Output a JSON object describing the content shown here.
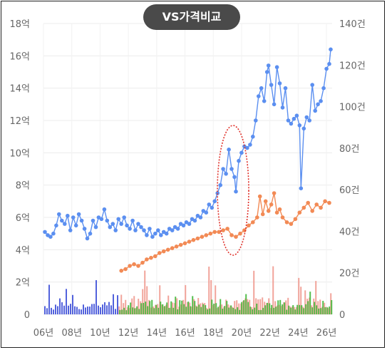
{
  "header": {
    "toggle_label": "VS가격비교"
  },
  "chart_data": {
    "type": "line",
    "x_tick_labels": [
      "06년",
      "08년",
      "10년",
      "12년",
      "14년",
      "16년",
      "18년",
      "20년",
      "22년",
      "24년",
      "26년"
    ],
    "x_range": [
      2006.0,
      2026.4
    ],
    "y_left": {
      "range": [
        0,
        18
      ],
      "tick_labels": [
        "0",
        "2억",
        "4억",
        "6억",
        "8억",
        "10억",
        "12억",
        "14억",
        "16억",
        "18억"
      ]
    },
    "y_right": {
      "range": [
        0,
        140
      ],
      "tick_labels": [
        "0",
        "20건",
        "40건",
        "60건",
        "80건",
        "100건",
        "120건",
        "140건"
      ]
    },
    "grid": true,
    "series": [
      {
        "color": "#5b8ff0",
        "axis": "left",
        "points": [
          [
            2006.1,
            5.1
          ],
          [
            2006.3,
            4.9
          ],
          [
            2006.5,
            4.8
          ],
          [
            2006.7,
            5.0
          ],
          [
            2006.9,
            5.5
          ],
          [
            2007.1,
            6.2
          ],
          [
            2007.3,
            5.8
          ],
          [
            2007.5,
            5.6
          ],
          [
            2007.7,
            6.1
          ],
          [
            2007.9,
            5.2
          ],
          [
            2008.1,
            6.0
          ],
          [
            2008.3,
            5.5
          ],
          [
            2008.5,
            6.2
          ],
          [
            2008.7,
            5.8
          ],
          [
            2008.9,
            5.3
          ],
          [
            2009.1,
            4.7
          ],
          [
            2009.3,
            5.0
          ],
          [
            2009.5,
            5.8
          ],
          [
            2009.7,
            5.4
          ],
          [
            2009.9,
            6.0
          ],
          [
            2010.1,
            5.9
          ],
          [
            2010.3,
            6.5
          ],
          [
            2010.5,
            5.8
          ],
          [
            2010.7,
            5.4
          ],
          [
            2010.9,
            5.6
          ],
          [
            2011.1,
            5.2
          ],
          [
            2011.3,
            5.9
          ],
          [
            2011.5,
            5.6
          ],
          [
            2011.7,
            6.0
          ],
          [
            2011.9,
            5.5
          ],
          [
            2012.1,
            5.3
          ],
          [
            2012.3,
            5.8
          ],
          [
            2012.5,
            5.2
          ],
          [
            2012.7,
            5.6
          ],
          [
            2012.9,
            5.4
          ],
          [
            2013.1,
            5.2
          ],
          [
            2013.3,
            4.9
          ],
          [
            2013.5,
            5.3
          ],
          [
            2013.7,
            4.8
          ],
          [
            2013.9,
            5.0
          ],
          [
            2014.1,
            5.2
          ],
          [
            2014.3,
            4.9
          ],
          [
            2014.5,
            5.1
          ],
          [
            2014.7,
            5.0
          ],
          [
            2014.9,
            5.3
          ],
          [
            2015.1,
            5.2
          ],
          [
            2015.3,
            5.4
          ],
          [
            2015.5,
            5.3
          ],
          [
            2015.7,
            5.6
          ],
          [
            2015.9,
            5.5
          ],
          [
            2016.1,
            5.7
          ],
          [
            2016.3,
            5.6
          ],
          [
            2016.5,
            5.9
          ],
          [
            2016.7,
            5.8
          ],
          [
            2016.9,
            6.1
          ],
          [
            2017.1,
            6.0
          ],
          [
            2017.3,
            6.4
          ],
          [
            2017.5,
            6.3
          ],
          [
            2017.7,
            6.8
          ],
          [
            2017.9,
            6.6
          ],
          [
            2018.1,
            7.0
          ],
          [
            2018.3,
            7.5
          ],
          [
            2018.5,
            8.0
          ],
          [
            2018.7,
            9.0
          ],
          [
            2018.9,
            8.7
          ],
          [
            2019.1,
            10.2
          ],
          [
            2019.3,
            9.0
          ],
          [
            2019.5,
            8.5
          ],
          [
            2019.6,
            7.6
          ],
          [
            2019.8,
            9.5
          ],
          [
            2020.0,
            10.0
          ],
          [
            2020.2,
            10.4
          ],
          [
            2020.4,
            10.3
          ],
          [
            2020.6,
            10.5
          ],
          [
            2020.8,
            11.0
          ],
          [
            2021.0,
            12.0
          ],
          [
            2021.2,
            13.5
          ],
          [
            2021.4,
            14.0
          ],
          [
            2021.6,
            13.2
          ],
          [
            2021.8,
            15.0
          ],
          [
            2021.9,
            15.4
          ],
          [
            2022.1,
            14.2
          ],
          [
            2022.3,
            13.0
          ],
          [
            2022.5,
            15.3
          ],
          [
            2022.7,
            14.3
          ],
          [
            2022.9,
            12.8
          ],
          [
            2023.1,
            14.0
          ],
          [
            2023.3,
            12.0
          ],
          [
            2023.5,
            11.8
          ],
          [
            2023.7,
            12.1
          ],
          [
            2023.9,
            12.3
          ],
          [
            2024.1,
            11.7
          ],
          [
            2024.2,
            7.8
          ],
          [
            2024.4,
            11.5
          ],
          [
            2024.6,
            12.2
          ],
          [
            2024.8,
            12.0
          ],
          [
            2025.0,
            14.2
          ],
          [
            2025.2,
            12.6
          ],
          [
            2025.4,
            13.0
          ],
          [
            2025.6,
            13.2
          ],
          [
            2025.8,
            14.0
          ],
          [
            2026.0,
            15.2
          ],
          [
            2026.2,
            15.5
          ],
          [
            2026.3,
            16.4
          ]
        ]
      },
      {
        "color": "#f28a55",
        "axis": "left",
        "points": [
          [
            2011.5,
            2.7
          ],
          [
            2011.8,
            2.8
          ],
          [
            2012.1,
            3.0
          ],
          [
            2012.4,
            3.1
          ],
          [
            2012.7,
            3.0
          ],
          [
            2013.0,
            3.2
          ],
          [
            2013.3,
            3.4
          ],
          [
            2013.6,
            3.5
          ],
          [
            2013.9,
            3.6
          ],
          [
            2014.2,
            3.8
          ],
          [
            2014.5,
            3.9
          ],
          [
            2014.8,
            4.0
          ],
          [
            2015.1,
            4.1
          ],
          [
            2015.4,
            4.2
          ],
          [
            2015.7,
            4.3
          ],
          [
            2016.0,
            4.4
          ],
          [
            2016.3,
            4.5
          ],
          [
            2016.6,
            4.6
          ],
          [
            2016.9,
            4.7
          ],
          [
            2017.2,
            4.8
          ],
          [
            2017.5,
            4.9
          ],
          [
            2017.8,
            5.0
          ],
          [
            2018.1,
            5.1
          ],
          [
            2018.4,
            5.1
          ],
          [
            2018.7,
            5.2
          ],
          [
            2019.0,
            5.3
          ],
          [
            2019.3,
            4.9
          ],
          [
            2019.6,
            4.8
          ],
          [
            2019.9,
            5.0
          ],
          [
            2020.2,
            5.2
          ],
          [
            2020.5,
            5.5
          ],
          [
            2020.8,
            5.7
          ],
          [
            2021.1,
            6.0
          ],
          [
            2021.3,
            7.3
          ],
          [
            2021.5,
            6.2
          ],
          [
            2021.7,
            7.0
          ],
          [
            2021.9,
            6.4
          ],
          [
            2022.1,
            6.8
          ],
          [
            2022.3,
            7.5
          ],
          [
            2022.5,
            6.3
          ],
          [
            2022.7,
            6.5
          ],
          [
            2022.9,
            6.0
          ],
          [
            2023.2,
            5.7
          ],
          [
            2023.5,
            5.6
          ],
          [
            2023.8,
            5.9
          ],
          [
            2024.1,
            6.3
          ],
          [
            2024.4,
            6.6
          ],
          [
            2024.7,
            6.9
          ],
          [
            2025.0,
            6.4
          ],
          [
            2025.3,
            6.8
          ],
          [
            2025.6,
            6.6
          ],
          [
            2025.9,
            7.0
          ],
          [
            2026.2,
            6.9
          ]
        ]
      }
    ]
  }
}
